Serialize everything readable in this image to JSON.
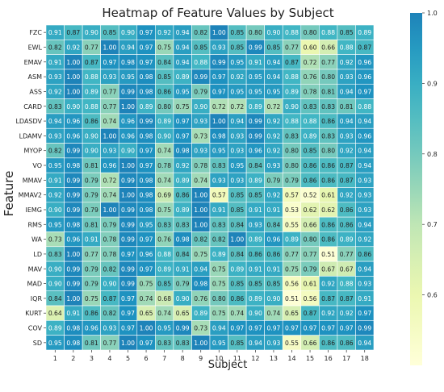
{
  "chart_data": {
    "type": "heatmap",
    "title": "Heatmap of Feature Values by Subject",
    "xlabel": "Subject",
    "ylabel": "Feature",
    "columns": [
      "1",
      "2",
      "3",
      "4",
      "5",
      "6",
      "7",
      "8",
      "9",
      "10",
      "11",
      "12",
      "13",
      "14",
      "15",
      "16",
      "17",
      "18"
    ],
    "rows": [
      "FZC",
      "EWL",
      "EMAV",
      "ASM",
      "ASS",
      "CARD",
      "LDASDV",
      "LDAMV",
      "MYOP",
      "VO",
      "MMAV",
      "MMAV2",
      "IEMG",
      "RMS",
      "WA",
      "LD",
      "MAV",
      "MAD",
      "IQR",
      "KURT",
      "COV",
      "SD"
    ],
    "values": [
      [
        0.91,
        0.87,
        0.9,
        0.85,
        0.9,
        0.97,
        0.92,
        0.94,
        0.82,
        1.0,
        0.85,
        0.8,
        0.9,
        0.88,
        0.8,
        0.88,
        0.85,
        0.89
      ],
      [
        0.82,
        0.92,
        0.77,
        1.0,
        0.94,
        0.97,
        0.75,
        0.94,
        0.85,
        0.93,
        0.85,
        0.99,
        0.85,
        0.77,
        0.6,
        0.66,
        0.88,
        0.87
      ],
      [
        0.91,
        1.0,
        0.87,
        0.97,
        0.98,
        0.97,
        0.84,
        0.94,
        0.88,
        0.99,
        0.95,
        0.91,
        0.94,
        0.87,
        0.72,
        0.77,
        0.92,
        0.96
      ],
      [
        0.93,
        1.0,
        0.88,
        0.93,
        0.95,
        0.98,
        0.85,
        0.89,
        0.99,
        0.97,
        0.92,
        0.95,
        0.94,
        0.88,
        0.76,
        0.8,
        0.93,
        0.96
      ],
      [
        0.92,
        1.0,
        0.89,
        0.77,
        0.99,
        0.98,
        0.86,
        0.95,
        0.79,
        0.97,
        0.95,
        0.95,
        0.95,
        0.89,
        0.78,
        0.81,
        0.94,
        0.97
      ],
      [
        0.83,
        0.9,
        0.88,
        0.77,
        1.0,
        0.89,
        0.8,
        0.75,
        0.9,
        0.72,
        0.72,
        0.89,
        0.72,
        0.9,
        0.83,
        0.83,
        0.81,
        0.88
      ],
      [
        0.94,
        0.96,
        0.86,
        0.74,
        0.96,
        0.99,
        0.89,
        0.97,
        0.93,
        1.0,
        0.94,
        0.99,
        0.92,
        0.88,
        0.88,
        0.86,
        0.94,
        0.94
      ],
      [
        0.93,
        0.96,
        0.9,
        1.0,
        0.96,
        0.98,
        0.9,
        0.97,
        0.73,
        0.98,
        0.93,
        0.99,
        0.92,
        0.83,
        0.89,
        0.83,
        0.93,
        0.96
      ],
      [
        0.82,
        0.99,
        0.9,
        0.93,
        0.9,
        0.97,
        0.74,
        0.98,
        0.93,
        0.95,
        0.93,
        0.96,
        0.92,
        0.8,
        0.85,
        0.8,
        0.92,
        0.94
      ],
      [
        0.95,
        0.98,
        0.81,
        0.96,
        1.0,
        0.97,
        0.78,
        0.92,
        0.78,
        0.83,
        0.95,
        0.84,
        0.93,
        0.8,
        0.86,
        0.86,
        0.87,
        0.94
      ],
      [
        0.91,
        0.99,
        0.79,
        0.72,
        0.99,
        0.98,
        0.74,
        0.89,
        0.74,
        0.93,
        0.93,
        0.89,
        0.79,
        0.79,
        0.86,
        0.86,
        0.87,
        0.93
      ],
      [
        0.92,
        0.99,
        0.79,
        0.74,
        1.0,
        0.98,
        0.69,
        0.86,
        1.0,
        0.57,
        0.85,
        0.85,
        0.92,
        0.57,
        0.52,
        0.61,
        0.92,
        0.93
      ],
      [
        0.9,
        0.99,
        0.79,
        1.0,
        0.99,
        0.98,
        0.75,
        0.89,
        1.0,
        0.91,
        0.85,
        0.91,
        0.91,
        0.53,
        0.62,
        0.62,
        0.86,
        0.93
      ],
      [
        0.95,
        0.98,
        0.81,
        0.79,
        0.99,
        0.95,
        0.83,
        0.83,
        1.0,
        0.83,
        0.84,
        0.93,
        0.84,
        0.55,
        0.66,
        0.86,
        0.86,
        0.94
      ],
      [
        0.73,
        0.96,
        0.91,
        0.78,
        0.99,
        0.97,
        0.76,
        0.98,
        0.82,
        0.82,
        1.0,
        0.89,
        0.96,
        0.89,
        0.8,
        0.86,
        0.89,
        0.92
      ],
      [
        0.83,
        1.0,
        0.77,
        0.78,
        0.97,
        0.96,
        0.88,
        0.84,
        0.75,
        0.89,
        0.84,
        0.86,
        0.86,
        0.77,
        0.77,
        0.51,
        0.77,
        0.86
      ],
      [
        0.9,
        0.99,
        0.79,
        0.82,
        0.99,
        0.97,
        0.89,
        0.91,
        0.94,
        0.75,
        0.89,
        0.91,
        0.91,
        0.75,
        0.79,
        0.67,
        0.67,
        0.94
      ],
      [
        0.9,
        0.99,
        0.79,
        0.9,
        0.99,
        0.75,
        0.85,
        0.79,
        0.98,
        0.75,
        0.85,
        0.85,
        0.85,
        0.56,
        0.61,
        0.92,
        0.88,
        0.93
      ],
      [
        0.84,
        1.0,
        0.75,
        0.87,
        0.97,
        0.74,
        0.68,
        0.9,
        0.76,
        0.8,
        0.86,
        0.89,
        0.9,
        0.51,
        0.56,
        0.87,
        0.87,
        0.91
      ],
      [
        0.64,
        0.91,
        0.86,
        0.82,
        0.97,
        0.65,
        0.74,
        0.65,
        0.89,
        0.75,
        0.74,
        0.9,
        0.74,
        0.65,
        0.87,
        0.92,
        0.92,
        0.97
      ],
      [
        0.89,
        0.98,
        0.96,
        0.93,
        0.97,
        1.0,
        0.95,
        0.99,
        0.73,
        0.94,
        0.97,
        0.97,
        0.97,
        0.97,
        0.97,
        0.97,
        0.97,
        0.99
      ],
      [
        0.95,
        0.98,
        0.81,
        0.77,
        1.0,
        0.97,
        0.83,
        0.83,
        1.0,
        0.95,
        0.85,
        0.94,
        0.93,
        0.55,
        0.66,
        0.86,
        0.86,
        0.94
      ]
    ],
    "colorbar": {
      "min": 0.5,
      "max": 1.0,
      "ticks": [
        "0.6",
        "0.7",
        "0.8",
        "0.9",
        "1.0"
      ],
      "colormap": "YlGnBu"
    }
  }
}
